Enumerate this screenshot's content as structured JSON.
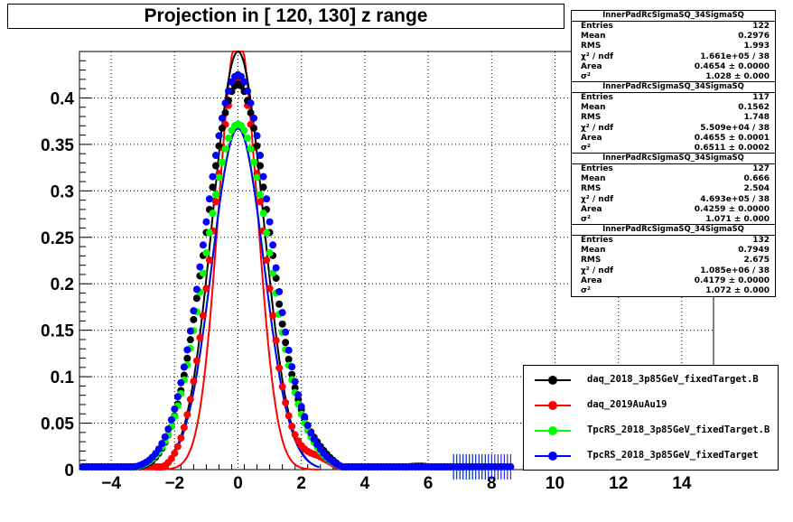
{
  "title": "Projection in [ 120, 130] z range",
  "stats_boxes": [
    {
      "name": "InnerPadRcSigmaSQ_34SigmaSQ",
      "rows": [
        [
          "Entries",
          "122"
        ],
        [
          "Mean",
          "0.2976"
        ],
        [
          "RMS",
          "1.993"
        ],
        [
          "χ² / ndf",
          "1.661e+05 / 38"
        ],
        [
          "Area",
          "0.4654 ± 0.0000"
        ],
        [
          "σ²",
          "1.028 ± 0.000"
        ]
      ]
    },
    {
      "name": "InnerPadRcSigmaSQ_34SigmaSQ",
      "rows": [
        [
          "Entries",
          "117"
        ],
        [
          "Mean",
          "0.1562"
        ],
        [
          "RMS",
          "1.748"
        ],
        [
          "χ² / ndf",
          "5.509e+04 / 38"
        ],
        [
          "Area",
          "0.4655 ± 0.0001"
        ],
        [
          "σ²",
          "0.6511 ± 0.0002"
        ]
      ]
    },
    {
      "name": "InnerPadRcSigmaSQ_34SigmaSQ",
      "rows": [
        [
          "Entries",
          "127"
        ],
        [
          "Mean",
          "0.666"
        ],
        [
          "RMS",
          "2.504"
        ],
        [
          "χ² / ndf",
          "4.693e+05 / 38"
        ],
        [
          "Area",
          "0.4259 ± 0.0000"
        ],
        [
          "σ²",
          "1.071 ± 0.000"
        ]
      ]
    },
    {
      "name": "InnerPadRcSigmaSQ_34SigmaSQ",
      "rows": [
        [
          "Entries",
          "132"
        ],
        [
          "Mean",
          "0.7949"
        ],
        [
          "RMS",
          "2.675"
        ],
        [
          "χ² / ndf",
          "1.085e+06 / 38"
        ],
        [
          "Area",
          "0.4179 ± 0.0000"
        ],
        [
          "σ²",
          "1.072 ± 0.000"
        ]
      ]
    }
  ],
  "legend": [
    {
      "label": "daq_2018_3p85GeV_fixedTarget.B",
      "color": "#000000"
    },
    {
      "label": "daq_2019AuAu19",
      "color": "#ff0000"
    },
    {
      "label": "TpcRS_2018_3p85GeV_fixedTarget.B",
      "color": "#00ff00"
    },
    {
      "label": "TpcRS_2018_3p85GeV_fixedTarget",
      "color": "#0000ff"
    }
  ],
  "chart_data": {
    "type": "scatter",
    "title": "Projection in [ 120, 130] z range",
    "xlabel": "",
    "ylabel": "",
    "xlim": [
      -5,
      15
    ],
    "ylim": [
      0,
      0.45
    ],
    "x_ticks": [
      -4,
      -2,
      0,
      2,
      4,
      6,
      8,
      10,
      12,
      14
    ],
    "x_tick_labels": [
      "−4",
      "−2",
      "0",
      "2",
      "4",
      "6",
      "8",
      "10",
      "12",
      "14"
    ],
    "y_ticks": [
      0,
      0.05,
      0.1,
      0.15,
      0.2,
      0.25,
      0.3,
      0.35,
      0.4
    ],
    "y_tick_labels": [
      "0",
      "0.05",
      "0.1",
      "0.15",
      "0.2",
      "0.25",
      "0.3",
      "0.35",
      "0.4"
    ],
    "grid": true,
    "legend_position": "bottom-right",
    "series": [
      {
        "name": "daq_2018_3p85GeV_fixedTarget.B",
        "color": "#000000",
        "sigma2": 1.028,
        "amp": 0.415,
        "base": 0.027,
        "wiggle": 0.01,
        "xmax": 7.3,
        "fit_peak": 0.45
      },
      {
        "name": "daq_2019AuAu19",
        "color": "#ff0000",
        "sigma2": 0.6511,
        "amp": 0.42,
        "base": 0.025,
        "wiggle": 0.012,
        "xmax": 7.0,
        "fit_peak": 0.47
      },
      {
        "name": "TpcRS_2018_3p85GeV_fixedTarget.B",
        "color": "#00ff00",
        "sigma2": 1.071,
        "amp": 0.372,
        "base": 0.027,
        "wiggle": 0.004,
        "xmax": 7.9,
        "fit_peak": 0.37
      },
      {
        "name": "TpcRS_2018_3p85GeV_fixedTarget",
        "color": "#0000ff",
        "sigma2": 1.072,
        "amp": 0.425,
        "base": 0.027,
        "wiggle": 0.004,
        "xmax": 8.6,
        "fit_peak": 0.367
      }
    ]
  }
}
